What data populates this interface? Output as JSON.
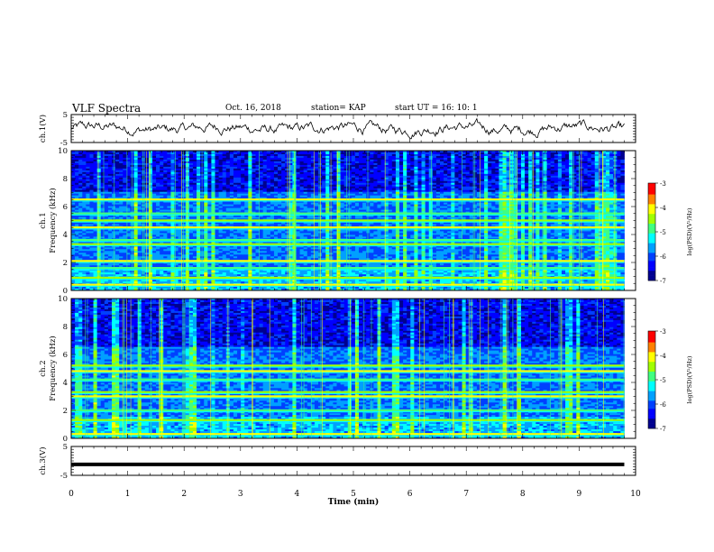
{
  "header": {
    "title": "VLF Spectra",
    "date": "Oct. 16, 2018",
    "station": "station= KAP",
    "start_time": "start  UT =   16: 10: 1"
  },
  "chart_data": [
    {
      "type": "line",
      "panel": "ch1-waveform",
      "ylabel": "ch.1(V)",
      "ylim": [
        -5,
        5
      ],
      "yticks": [
        "5",
        "-5"
      ],
      "xlim": [
        0,
        10
      ],
      "series": [
        {
          "description": "noisy waveform fluctuating roughly between -3 and 3 V over 0–9.8 min"
        }
      ]
    },
    {
      "type": "heatmap",
      "panel": "ch1-spectrogram",
      "ylabel": "ch.1\nFrequency (kHz)",
      "ylim": [
        0,
        10
      ],
      "yticks": [
        "0",
        "2",
        "4",
        "6",
        "8",
        "10"
      ],
      "xlim": [
        0,
        9.8
      ],
      "colorbar": {
        "label": "log(PSD)(V²/Hz)",
        "range": [
          -7,
          -3
        ],
        "ticks": [
          "-3",
          "-4",
          "-5",
          "-6",
          "-7"
        ]
      },
      "features": {
        "strong_bands_khz": [
          0.4,
          0.9,
          1.6,
          2.1,
          3.3,
          3.6,
          4.5,
          5.0,
          5.5,
          6.5
        ],
        "low_power_region_khz": [
          7,
          10
        ]
      }
    },
    {
      "type": "heatmap",
      "panel": "ch2-spectrogram",
      "ylabel": "ch.2\nFrequency (kHz)",
      "ylim": [
        0,
        10
      ],
      "yticks": [
        "0",
        "2",
        "4",
        "6",
        "8",
        "10"
      ],
      "xlim": [
        0,
        9.8
      ],
      "colorbar": {
        "label": "log(PSD)(V²/Hz)",
        "range": [
          -7,
          -3
        ],
        "ticks": [
          "-3",
          "-4",
          "-5",
          "-6",
          "-7"
        ]
      },
      "features": {
        "strong_bands_khz": [
          0.3,
          1.3,
          2.0,
          3.0,
          3.3,
          4.2,
          4.8,
          5.2
        ],
        "low_power_region_khz": [
          6.5,
          10
        ]
      }
    },
    {
      "type": "line",
      "panel": "ch3-waveform",
      "ylabel": "ch.3(V)",
      "ylim": [
        -5,
        5
      ],
      "yticks": [
        "5",
        "-5"
      ],
      "xlim": [
        0,
        10
      ],
      "series": [
        {
          "description": "flat thick line near -1 V"
        }
      ]
    }
  ],
  "xaxis": {
    "label": "Time (min)",
    "ticks": [
      "0",
      "1",
      "2",
      "3",
      "4",
      "5",
      "6",
      "7",
      "8",
      "9",
      "10"
    ],
    "range": [
      0,
      10
    ]
  },
  "colors": {
    "colormap": [
      "#00008f",
      "#0000ff",
      "#0040ff",
      "#00a0ff",
      "#00ffff",
      "#40ff80",
      "#a0ff00",
      "#ffff00",
      "#ff8000",
      "#ff0000",
      "#ffffff"
    ]
  }
}
